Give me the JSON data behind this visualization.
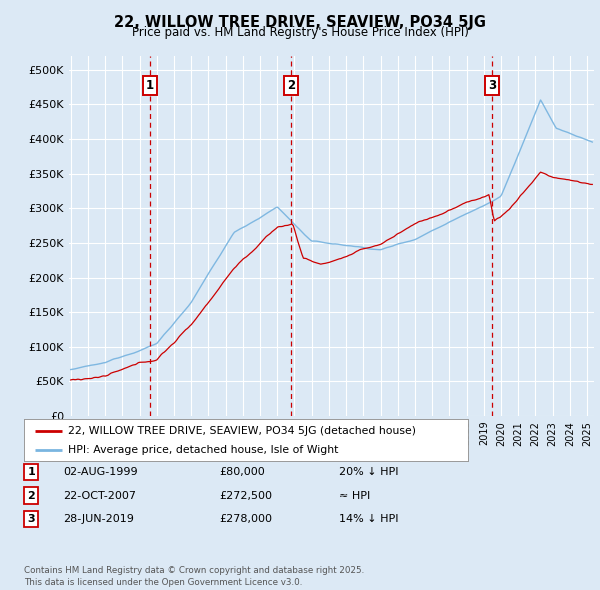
{
  "title": "22, WILLOW TREE DRIVE, SEAVIEW, PO34 5JG",
  "subtitle": "Price paid vs. HM Land Registry's House Price Index (HPI)",
  "bg_color": "#dce9f5",
  "plot_bg_color": "#dce9f5",
  "grid_color": "#ffffff",
  "hpi_color": "#7ab5e0",
  "price_color": "#cc0000",
  "ylim": [
    0,
    520000
  ],
  "yticks": [
    0,
    50000,
    100000,
    150000,
    200000,
    250000,
    300000,
    350000,
    400000,
    450000,
    500000
  ],
  "ytick_labels": [
    "£0",
    "£50K",
    "£100K",
    "£150K",
    "£200K",
    "£250K",
    "£300K",
    "£350K",
    "£400K",
    "£450K",
    "£500K"
  ],
  "sale1_date": 1999.58,
  "sale1_price": 80000,
  "sale1_label": "1",
  "sale2_date": 2007.81,
  "sale2_price": 272500,
  "sale2_label": "2",
  "sale3_date": 2019.49,
  "sale3_price": 278000,
  "sale3_label": "3",
  "legend_red_label": "22, WILLOW TREE DRIVE, SEAVIEW, PO34 5JG (detached house)",
  "legend_blue_label": "HPI: Average price, detached house, Isle of Wight",
  "table_rows": [
    {
      "num": "1",
      "date": "02-AUG-1999",
      "price": "£80,000",
      "rel": "20% ↓ HPI"
    },
    {
      "num": "2",
      "date": "22-OCT-2007",
      "price": "£272,500",
      "rel": "≈ HPI"
    },
    {
      "num": "3",
      "date": "28-JUN-2019",
      "price": "£278,000",
      "rel": "14% ↓ HPI"
    }
  ],
  "footer": "Contains HM Land Registry data © Crown copyright and database right 2025.\nThis data is licensed under the Open Government Licence v3.0."
}
